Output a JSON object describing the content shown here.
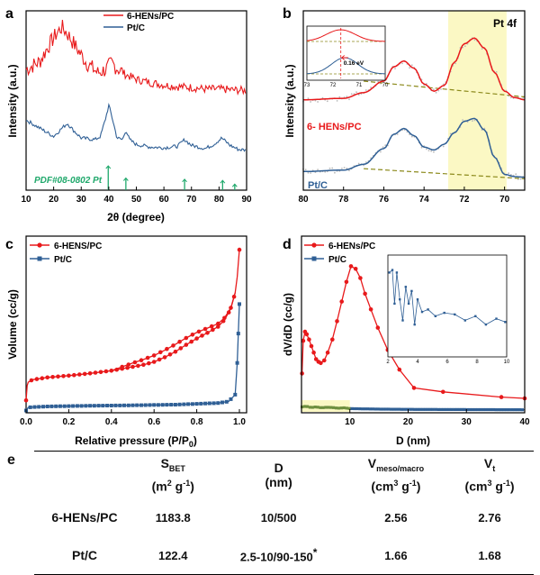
{
  "panels": {
    "a": {
      "letter": "a",
      "xlabel": "2θ (degree)",
      "ylabel": "Intensity (a.u.)",
      "legend": [
        "6-HENs/PC",
        "Pt/C"
      ],
      "ref_label": "PDF#08-0802 Pt",
      "xticks": [
        "10",
        "20",
        "30",
        "40",
        "50",
        "60",
        "70",
        "80",
        "90"
      ]
    },
    "b": {
      "letter": "b",
      "xlabel": "Binding Energy (eV)",
      "ylabel": "Intensity (a.u.)",
      "title": "Pt 4f",
      "label_top": "6- HENs/PC",
      "label_bottom": "Pt/C",
      "shift_label": "0.16 eV",
      "xticks": [
        "80",
        "78",
        "76",
        "74",
        "72",
        "70"
      ],
      "inset_xticks": [
        "73",
        "72",
        "71",
        "70"
      ]
    },
    "c": {
      "letter": "c",
      "xlabel": "Relative pressure (P/P",
      "xlabel_sub": "0",
      "xlabel_end": ")",
      "ylabel": "Volume (cc/g)",
      "legend": [
        "6-HENS/PC",
        "Pt/C"
      ],
      "xticks": [
        "0.0",
        "0.2",
        "0.4",
        "0.6",
        "0.8",
        "1.0"
      ]
    },
    "d": {
      "letter": "d",
      "xlabel": "D (nm)",
      "ylabel": "dV/dD (cc/g)",
      "legend": [
        "6-HENs/PC",
        "Pt/C"
      ],
      "xticks": [
        "10",
        "20",
        "30",
        "40"
      ],
      "inset_xticks": [
        "2",
        "4",
        "6",
        "8",
        "10"
      ]
    }
  },
  "colors": {
    "red": "#e8191b",
    "blue": "#2f5f95",
    "olive": "#8c8a1c",
    "green": "#1fa86b",
    "highlight": "#fbf8c4"
  },
  "chart_data": [
    {
      "panel": "a",
      "type": "line",
      "xlabel": "2θ (degree)",
      "ylabel": "Intensity (a.u.)",
      "xlim": [
        10,
        90
      ],
      "series": [
        {
          "name": "6-HENs/PC",
          "x": [
            10,
            15,
            18,
            21,
            23,
            25,
            28,
            32,
            36,
            39,
            41,
            43,
            46,
            50,
            55,
            60,
            65,
            70,
            75,
            80,
            85,
            90
          ],
          "y": [
            7.4,
            7.9,
            8.8,
            9.6,
            10.0,
            9.6,
            8.8,
            7.8,
            7.2,
            7.4,
            7.8,
            7.5,
            7.1,
            6.8,
            6.6,
            6.45,
            6.35,
            6.3,
            6.2,
            6.2,
            6.15,
            6.1
          ]
        },
        {
          "name": "Pt/C",
          "x": [
            10,
            15,
            20,
            23,
            25,
            27,
            30,
            35,
            37,
            39,
            40,
            41,
            43,
            45,
            46.2,
            47.5,
            50,
            55,
            60,
            65,
            67.5,
            70,
            75,
            78,
            81,
            84,
            87,
            90
          ],
          "y": [
            4.3,
            3.8,
            3.3,
            3.8,
            4.1,
            3.7,
            3.2,
            3.1,
            3.3,
            4.5,
            5.2,
            4.6,
            3.2,
            3.1,
            3.7,
            3.1,
            2.8,
            2.65,
            2.6,
            2.7,
            3.1,
            2.75,
            2.55,
            2.8,
            3.2,
            2.75,
            2.5,
            2.45
          ]
        }
      ],
      "reference": {
        "name": "PDF#08-0802 Pt",
        "x": [
          39.8,
          46.2,
          67.5,
          81.3,
          85.7
        ],
        "h": [
          1.0,
          0.5,
          0.45,
          0.4,
          0.25
        ]
      }
    },
    {
      "panel": "b",
      "type": "line",
      "title": "Pt 4f",
      "xlabel": "Binding Energy (eV)",
      "ylabel": "Intensity (a.u.)",
      "xlim": [
        80,
        69
      ],
      "x_reversed": true,
      "series": [
        {
          "name": "6- HENs/PC",
          "x": [
            80,
            78,
            77,
            76,
            75.5,
            75,
            74.5,
            74,
            73.5,
            73,
            72.5,
            72,
            71.5,
            71,
            70.5,
            70,
            69.5,
            69
          ],
          "y": [
            6.3,
            6.4,
            6.8,
            7.6,
            8.6,
            9.0,
            8.5,
            7.4,
            6.9,
            7.3,
            8.9,
            10.2,
            10.6,
            9.9,
            8.2,
            6.9,
            6.45,
            6.3
          ]
        },
        {
          "name": "Pt/C",
          "x": [
            80,
            78,
            77,
            76,
            75.5,
            75,
            74.5,
            74,
            73.5,
            73,
            72.5,
            72,
            71.5,
            71,
            70.5,
            70,
            69.5,
            69
          ],
          "y": [
            1.3,
            1.4,
            1.8,
            2.9,
            3.9,
            4.3,
            3.8,
            3.0,
            2.8,
            3.2,
            4.0,
            4.8,
            5.0,
            4.2,
            2.3,
            1.1,
            0.95,
            0.9
          ]
        }
      ],
      "highlight_x": [
        72.8,
        69.9
      ],
      "inset": {
        "xlim": [
          73,
          70
        ],
        "shift_ev": 0.16
      }
    },
    {
      "panel": "c",
      "type": "line",
      "xlabel": "Relative pressure (P/P0)",
      "ylabel": "Volume (cc/g)",
      "xlim": [
        0,
        1.0
      ],
      "series": [
        {
          "name": "6-HENS/PC",
          "x": [
            0.0,
            0.005,
            0.01,
            0.03,
            0.1,
            0.2,
            0.3,
            0.4,
            0.5,
            0.55,
            0.6,
            0.65,
            0.7,
            0.75,
            0.8,
            0.85,
            0.9,
            0.93,
            0.96,
            0.98,
            0.99,
            1.0
          ],
          "y": [
            5.5,
            12.0,
            13.5,
            14.6,
            15.6,
            16.4,
            17.4,
            18.6,
            20.3,
            21.2,
            22.5,
            24.5,
            27.0,
            30.0,
            32.8,
            35.3,
            38.0,
            41.0,
            46.0,
            53.0,
            60.0,
            72.0
          ]
        },
        {
          "name": "Pt/C",
          "x": [
            0.0,
            0.01,
            0.1,
            0.3,
            0.5,
            0.7,
            0.9,
            0.95,
            0.98,
            0.99,
            1.0
          ],
          "y": [
            1.0,
            2.4,
            2.8,
            3.1,
            3.3,
            3.6,
            4.3,
            5.0,
            8.0,
            22.0,
            48.0
          ]
        }
      ]
    },
    {
      "panel": "d",
      "type": "line",
      "xlabel": "D (nm)",
      "ylabel": "dV/dD (cc/g)",
      "xlim": [
        1.7,
        40
      ],
      "series": [
        {
          "name": "6-HENs/PC",
          "x": [
            1.8,
            2.0,
            2.3,
            2.6,
            3.0,
            3.4,
            3.8,
            4.2,
            4.6,
            5.0,
            5.6,
            6.2,
            7.0,
            7.8,
            8.6,
            9.4,
            10.2,
            11.0,
            11.8,
            12.6,
            13.6,
            14.8,
            16.5,
            18.5,
            21.0,
            26.0,
            36.0,
            40.0
          ],
          "y": [
            3.0,
            5.5,
            6.2,
            6.0,
            5.6,
            5.1,
            4.6,
            4.1,
            3.9,
            3.8,
            4.0,
            4.6,
            5.6,
            7.0,
            8.5,
            10.0,
            11.2,
            11.0,
            10.3,
            9.1,
            7.9,
            6.5,
            4.8,
            3.3,
            1.9,
            1.6,
            1.2,
            1.1
          ]
        },
        {
          "name": "Pt/C",
          "x": [
            1.8,
            2.5,
            3.3,
            4.2,
            5.1,
            6.0,
            7.0,
            8.0,
            9.0,
            10.0,
            12.0,
            15.0,
            20.0,
            26.0,
            33.0,
            40.0
          ],
          "y": [
            0.45,
            0.5,
            0.4,
            0.45,
            0.38,
            0.42,
            0.4,
            0.35,
            0.38,
            0.32,
            0.3,
            0.28,
            0.26,
            0.25,
            0.24,
            0.23
          ]
        }
      ],
      "highlight_x": [
        1.7,
        10.0
      ],
      "inset": {
        "xlim": [
          2,
          10
        ],
        "series": "Pt/C"
      }
    },
    {
      "panel": "e",
      "type": "table",
      "columns": [
        "S_BET (m2 g-1)",
        "D (nm)",
        "V_meso/macro (cm3 g-1)",
        "V_t (cm3 g-1)"
      ],
      "rows": [
        [
          "6-HENs/PC",
          "1183.8",
          "10/500",
          "2.56",
          "2.76"
        ],
        [
          "Pt/C",
          "122.4",
          "2.5-10/90-150*",
          "1.66",
          "1.68"
        ]
      ]
    }
  ],
  "table": {
    "letter": "e",
    "headers": [
      {
        "main": "S",
        "sub": "BET",
        "unit": "(m",
        "unit_sup": "2",
        "unit_mid": " g",
        "unit_sup2": "-1",
        "unit_end": ")"
      },
      {
        "main": "D",
        "sub": "",
        "unit": "(nm)",
        "unit_sup": "",
        "unit_mid": "",
        "unit_sup2": "",
        "unit_end": ""
      },
      {
        "main": "V",
        "sub": "meso/macro",
        "unit": "(cm",
        "unit_sup": "3",
        "unit_mid": " g",
        "unit_sup2": "-1",
        "unit_end": ")"
      },
      {
        "main": "V",
        "sub": "t",
        "unit": "(cm",
        "unit_sup": "3",
        "unit_mid": " g",
        "unit_sup2": "-1",
        "unit_end": ")"
      }
    ],
    "rows": [
      {
        "name": "6-HENs/PC",
        "sbet": "1183.8",
        "d": "10/500",
        "vmeso": "2.56",
        "vt": "2.76"
      },
      {
        "name": "Pt/C",
        "sbet": "122.4",
        "d": "2.5-10/90-150",
        "d_mark": "*",
        "vmeso": "1.66",
        "vt": "1.68"
      }
    ]
  }
}
